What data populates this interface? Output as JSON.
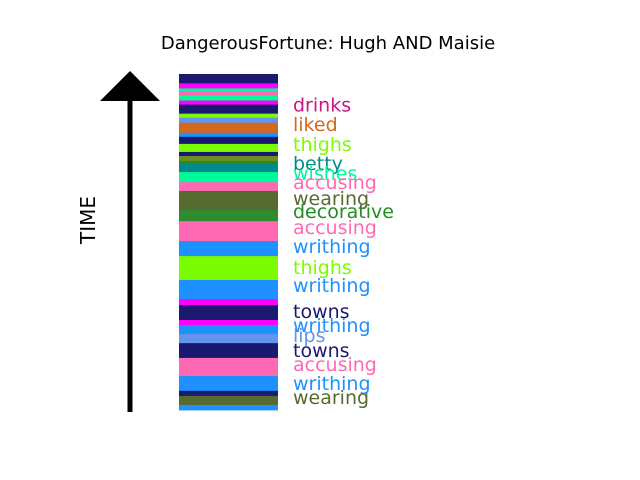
{
  "chart_data": {
    "type": "bar",
    "title": "DangerousFortune: Hugh AND Maisie",
    "ylabel": "TIME",
    "xlabel": "",
    "stripes": [
      {
        "color": "#191970",
        "start": 0.0,
        "end": 0.028
      },
      {
        "color": "#ff00ff",
        "start": 0.028,
        "end": 0.043
      },
      {
        "color": "#00fa9a",
        "start": 0.043,
        "end": 0.052
      },
      {
        "color": "#ff69b4",
        "start": 0.052,
        "end": 0.064
      },
      {
        "color": "#00fa9a",
        "start": 0.064,
        "end": 0.079
      },
      {
        "color": "#ff00ff",
        "start": 0.079,
        "end": 0.091
      },
      {
        "color": "#191970",
        "start": 0.091,
        "end": 0.118
      },
      {
        "color": "#7cfc00",
        "start": 0.118,
        "end": 0.13
      },
      {
        "color": "#6495ed",
        "start": 0.13,
        "end": 0.145
      },
      {
        "color": "#d2691e",
        "start": 0.145,
        "end": 0.175
      },
      {
        "color": "#1e90ff",
        "start": 0.175,
        "end": 0.187
      },
      {
        "color": "#191970",
        "start": 0.187,
        "end": 0.208
      },
      {
        "color": "#7cfc00",
        "start": 0.208,
        "end": 0.232
      },
      {
        "color": "#191970",
        "start": 0.232,
        "end": 0.244
      },
      {
        "color": "#6b8e23",
        "start": 0.244,
        "end": 0.259
      },
      {
        "color": "#228b22",
        "start": 0.259,
        "end": 0.268
      },
      {
        "color": "#008b8b",
        "start": 0.268,
        "end": 0.292
      },
      {
        "color": "#00fa9a",
        "start": 0.292,
        "end": 0.322
      },
      {
        "color": "#ff69b4",
        "start": 0.322,
        "end": 0.348
      },
      {
        "color": "#556b2f",
        "start": 0.348,
        "end": 0.405
      },
      {
        "color": "#2e8b2e",
        "start": 0.405,
        "end": 0.438
      },
      {
        "color": "#ff69b4",
        "start": 0.438,
        "end": 0.497
      },
      {
        "color": "#1e90ff",
        "start": 0.497,
        "end": 0.542
      },
      {
        "color": "#7cfc00",
        "start": 0.542,
        "end": 0.613
      },
      {
        "color": "#1e90ff",
        "start": 0.613,
        "end": 0.67
      },
      {
        "color": "#ff00ff",
        "start": 0.67,
        "end": 0.688
      },
      {
        "color": "#191970",
        "start": 0.688,
        "end": 0.732
      },
      {
        "color": "#ff00ff",
        "start": 0.732,
        "end": 0.747
      },
      {
        "color": "#1e90ff",
        "start": 0.747,
        "end": 0.774
      },
      {
        "color": "#6495ed",
        "start": 0.774,
        "end": 0.801
      },
      {
        "color": "#191970",
        "start": 0.801,
        "end": 0.845
      },
      {
        "color": "#ff69b4",
        "start": 0.845,
        "end": 0.899
      },
      {
        "color": "#1e90ff",
        "start": 0.899,
        "end": 0.943
      },
      {
        "color": "#191970",
        "start": 0.943,
        "end": 0.958
      },
      {
        "color": "#556b2f",
        "start": 0.958,
        "end": 0.985
      },
      {
        "color": "#1e90ff",
        "start": 0.985,
        "end": 1.0
      }
    ],
    "labels": [
      {
        "text": "drinks",
        "color": "#c71585",
        "pos": 0.091
      },
      {
        "text": "liked",
        "color": "#d2691e",
        "pos": 0.149
      },
      {
        "text": "thighs",
        "color": "#7cfc00",
        "pos": 0.208
      },
      {
        "text": "betty",
        "color": "#008b8b",
        "pos": 0.265
      },
      {
        "text": "wishes",
        "color": "#00fa9a",
        "pos": 0.295
      },
      {
        "text": "accusing",
        "color": "#ff69b4",
        "pos": 0.322
      },
      {
        "text": "wearing",
        "color": "#556b2f",
        "pos": 0.369
      },
      {
        "text": "decorative",
        "color": "#228b22",
        "pos": 0.408
      },
      {
        "text": "accusing",
        "color": "#ff69b4",
        "pos": 0.455
      },
      {
        "text": "writhing",
        "color": "#1e90ff",
        "pos": 0.512
      },
      {
        "text": "thighs",
        "color": "#7cfc00",
        "pos": 0.574
      },
      {
        "text": "writhing",
        "color": "#1e90ff",
        "pos": 0.628
      },
      {
        "text": "towns",
        "color": "#191970",
        "pos": 0.705
      },
      {
        "text": "writhing",
        "color": "#1e90ff",
        "pos": 0.747
      },
      {
        "text": "lips",
        "color": "#6495ed",
        "pos": 0.777
      },
      {
        "text": "towns",
        "color": "#191970",
        "pos": 0.821
      },
      {
        "text": "accusing",
        "color": "#ff69b4",
        "pos": 0.863
      },
      {
        "text": "writhing",
        "color": "#1e90ff",
        "pos": 0.92
      },
      {
        "text": "wearing",
        "color": "#556b2f",
        "pos": 0.961
      }
    ]
  }
}
